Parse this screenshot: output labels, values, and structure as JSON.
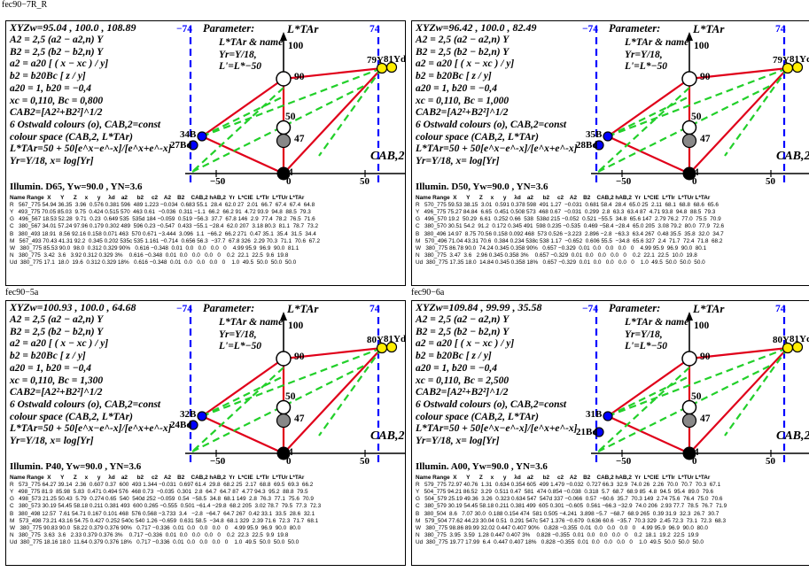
{
  "page": {
    "top_label": "fec90−7R_R",
    "colors": {
      "blue": "#0000ff",
      "red": "#e0001a",
      "green": "#22d02a",
      "yellow": "#ffee00",
      "gray": "#888888"
    }
  },
  "panels": [
    {
      "id": "p1",
      "xyz": "XYZw=95.04 , 100.0 , 108.89",
      "lines": [
        "A2 = 2,5 (a2 − a2,n) Y",
        "B2 = 2,5 (b2 − b2,n) Y",
        "a2 = a20 [ ( x − xc ) / y]",
        "b2 = b20Bc [ z / y]",
        "a20 = 1,  b20 = −0,4",
        "xc = 0,110,  Bc = 0,800",
        "CAB2=[A2²+B2²]^1/2",
        "6 Ostwald colours (o), CAB,2=const",
        "colour space (CAB,2, L*TAr)",
        "L*TAr=50 + 50[e^x−e^-x]/[e^x+e^-x]",
        "Yr=Y/18,  x= log[Yr]"
      ],
      "param_title": "Parameter:",
      "param_lines": [
        "L*TAr & name",
        "Yr=Y/18,",
        "L'=L*−50"
      ],
      "axis_l": "L*TAr",
      "axis_c": "CAB,2",
      "left_tick": "−74",
      "right_tick": "74",
      "yellow_label": "79Y",
      "yellow_d": "81Yd",
      "blue_label": "34B",
      "blue_d": "27Bd",
      "num_100": "100",
      "num_90": "90",
      "num_50": "50",
      "num_47": "47",
      "num_4": "4",
      "tick_m50": "−50",
      "tick_0": "0",
      "tick_50": "50",
      "illum": "Illumin. D65, Yw=90.0 , YN=3.6",
      "table": [
        "Name Range  X      Y      Z     x      y     λd    a2      b2     c2    A2    B2    CAB,2 hAB,2  Yr  L*CIE  L*TIr  L*TUr L*TAr",
        "R   567_775 54.94 36.35  3.96  0.576 0.381 596  489 1.223 −0.034  0.683 55.1  28.4  62.0 27  2.01  66.7  67.4  67.4  64.8",
        "Y   493_775 70.05 85.03  9.75  0.424 0.515 570  463 0.61  −0.036  0.311 −1.1  66.2  66.2 91  4.72 93.9  94.8  88.5  79.3",
        "G   496_567 18.53 52.28  9.71  0.23  0.649 535  535d 184 −0.059  0.519 −56.3  37.7  67.8 146  2.9  77.4  78.2  76.5  71.6",
        "C   380_567 34.01 57.24 97.96 0.179 0.302 489  596 0.23 −0.547  0.433 −55.1 −28.4  62.0 207  3.18 80.3  81.1  78.7  73.2",
        "B   380_493 18.91  8.56 92.16 0.158 0.071 463  570 0.671 −3.444  3.096  1.1  −66.2  66.2 271  0.47 35.1  35.4  31.5  34.4",
        "M   567_493 70.43 41.31 92.2  0.345 0.202 535c 535 1.161 −0.714  0.656 56.3  −37.7  67.8 326  2.29 70.3  71.1  70.6  67.2",
        "W   380_775 85.53 90.0  98.0  0.312 0.329 90%   0.616 −0.348  0.01  0.0   0.0   0.0   0    4.99 95.9  96.9  90.0  81.1",
        "N   380_775  3.42  3.6   3.92 0.312 0.329 3%    0.616 −0.348  0.01  0.0   0.0   0.0   0    0.2  22.1  22.5  9.6  19.8",
        "Ud  380_775 17.1  18.0  19.6  0.312 0.329 18%   0.616 −0.348  0.01  0.0   0.0   0.0   0    1.0  49.5  50.0  50.0  50.0"
      ],
      "footer": "fec90−5a"
    },
    {
      "id": "p2",
      "xyz": "XYZw=96.42 , 100.0 , 82.49",
      "lines": [
        "A2 = 2,5 (a2 − a2,n) Y",
        "B2 = 2,5 (b2 − b2,n) Y",
        "a2 = a20 [ ( x − xc ) / y]",
        "b2 = b20Bc [ z / y]",
        "a20 = 1,  b20 = −0,4",
        "xc = 0,110,  Bc = 1,000",
        "CAB2=[A2²+B2²]^1/2",
        "6 Ostwald colours (o), CAB,2=const",
        "colour space (CAB,2, L*TAr)",
        "L*TAr=50 + 50[e^x−e^-x]/[e^x+e^-x]",
        "Yr=Y/18,  x= log[Yr]"
      ],
      "param_title": "Parameter:",
      "param_lines": [
        "L*TAr & name",
        "Yr=Y/18,",
        "L'=L*−50"
      ],
      "axis_l": "L*TAr",
      "axis_c": "CAB,2",
      "left_tick": "−74",
      "right_tick": "74",
      "yellow_label": "79Y",
      "yellow_d": "81Yd",
      "blue_label": "35B",
      "blue_d": "28Bd",
      "num_100": "100",
      "num_90": "90",
      "num_50": "50",
      "num_47": "47",
      "num_4": "4",
      "tick_m50": "−50",
      "tick_0": "0",
      "tick_50": "50",
      "illum": "Illumin. D50, Yw=90.0 , YN=3.6",
      "table": [
        "Name Range  X      Y      Z     x      y     λd    a2      b2     c2    A2    B2    CAB,2 hAB,2  Yr  L*CIE  L*TIr  L*TUr L*TAr",
        "R   570_775 59.53 38.15  3.01  0.591 0.378 598  491 1.27  −0.031  0.681 58.4  28.4  65.0 25  2.11  68.1  68.8  68.6  65.6",
        "Y   496_775 75.27 84.84  6.65  0.451 0.508 573  468 0.67  −0.031  0.299  2.8  63.3  63.4 87  4.71 93.8  94.8  88.5  79.3",
        "G   496_570 19.2  50.29  6.61  0.252 0.66  538  538d 215 −0.052  0.521 −55.5  34.8  65.6 147  2.79 76.2  77.0  75.5  70.9",
        "C   380_570 30.51 54.2  91.2  0.172 0.345 491  598 0.235 −0.535  0.469 −58.4 −28.4  65.0 205  3.08 79.2  80.0  77.9  72.6",
        "B   380_496 14.97  8.75 70.56 0.158 0.092 468  573 0.526 −3.223  2.896 −2.8  −63.3  63.4 267  0.48 35.5  35.8  32.0  34.7",
        "M   570_496 71.04 43.31 70.6  0.384 0.234 538c 538 1.17  −0.652  0.606 55.5  −34.8  65.6 327  2.4  71.7  72.4  71.8  68.2",
        "W   380_775 86.78 90.0  74.24 0.345 0.358 90%   0.657 −0.329  0.01  0.0   0.0   0.0   0    4.99 95.9  96.9  90.0  80.1",
        "N   380_775  3.47  3.6   2.96 0.345 0.358 3%    0.657 −0.329  0.01  0.0   0.0   0.0   0    0.2  22.1  22.5  10.0  19.8",
        "Ud  380_775 17.35 18.0  14.84 0.345 0.358 18%   0.657 −0.329  0.01  0.0   0.0   0.0   0    1.0  49.5  50.0  50.0  50.0"
      ],
      "footer": "fec90−6a"
    },
    {
      "id": "p3",
      "xyz": "XYZw=100.93 , 100.0 , 64.68",
      "lines": [
        "A2 = 2,5 (a2 − a2,n) Y",
        "B2 = 2,5 (b2 − b2,n) Y",
        "a2 = a20 [ ( x − xc ) / y]",
        "b2 = b20Bc [ z / y]",
        "a20 = 1,  b20 = −0,4",
        "xc = 0,110,  Bc = 1,300",
        "CAB2=[A2²+B2²]^1/2",
        "6 Ostwald colours (o), CAB,2=const",
        "colour space (CAB,2, L*TAr)",
        "L*TAr=50 + 50[e^x−e^-x]/[e^x+e^-x]",
        "Yr=Y/18,  x= log[Yr]"
      ],
      "param_title": "Parameter:",
      "param_lines": [
        "L*TAr & name",
        "Yr=Y/18,",
        "L'=L*−50"
      ],
      "axis_l": "L*TAr",
      "axis_c": "CAB,2",
      "left_tick": "−74",
      "right_tick": "74",
      "yellow_label": "80Y",
      "yellow_d": "81Yd",
      "blue_label": "32B",
      "blue_d": "24Bd",
      "num_100": "100",
      "num_90": "90",
      "num_50": "50",
      "num_47": "47",
      "num_4": "4",
      "tick_m50": "−50",
      "tick_0": "0",
      "tick_50": "50",
      "illum": "Illumin. P40, Yw=90.0 , YN=3.6",
      "table": [
        "Name Range  X      Y      Z     x      y     λd    a2      b2     c2    A2    B2    CAB,2 hAB,2  Yr  L*CIE  L*TIr  L*TUr L*TAr",
        "R   573_775 64.27 39.14  2.36  0.607 0.37  600  493 1.344 −0.031  0.697 61.4  29.8  68.2 25  2.17  68.8  69.5  69.3  66.2",
        "Y   498_775 81.9  85.98  5.83  0.471 0.494 576  468 0.73  −0.035  0.301  2.8  64.7  64.7 87  4.77 94.3  95.2  88.8  79.5",
        "G   498_573 21.25 50.43  5.79  0.274 0.65  540  540d 252 −0.059  0.54  −58.5  34.8  68.1 149  2.8  76.3  77.1  75.6  70.9",
        "C   380_573 30.19 54.45 58.18 0.211 0.381 493  600 0.265 −0.555  0.501 −61.4 −29.8  68.2 205  3.02 78.7  79.5  77.3  72.3",
        "B   380_498 12.57  7.61 54.71 0.167 0.101 468  576 0.568 −3.733  3.4   −2.8  −64.7  64.7 267  0.42 33.1  33.5  28.6  32.1",
        "M   573_498 73.21 43.16 54.75 0.427 0.252 540c 540 1.26 −0.659  0.631 58.5  −34.8  68.1 329  2.39 71.6  72.3  71.7  68.1",
        "W   380_775 90.83 90.0  58.22 0.379 0.376 90%   0.717 −0.336  0.01  0.0   0.0   0.0   0    4.99 95.9  96.9  90.0  80.0",
        "N   380_775  3.63  3.6   2.33 0.379 0.376 3%    0.717 −0.336  0.01  0.0   0.0   0.0   0    0.2  22.3  22.5  9.9  19.8",
        "Ud  380_775 18.16 18.0  11.64 0.379 0.376 18%   0.717 −0.336  0.01  0.0   0.0   0.0   0    1.0  49.5  50.0  50.0  50.0"
      ],
      "footer": ""
    },
    {
      "id": "p4",
      "xyz": "XYZw=109.84 , 99.99 , 35.58",
      "lines": [
        "A2 = 2,5 (a2 − a2,n) Y",
        "B2 = 2,5 (b2 − b2,n) Y",
        "a2 = a20 [ ( x − xc ) / y]",
        "b2 = b20Bc [ z / y]",
        "a20 = 1,  b20 = −0,4",
        "xc = 0,110,  Bc = 2,500",
        "CAB2=[A2²+B2²]^1/2",
        "6 Ostwald colours (o), CAB,2=const",
        "colour space (CAB,2, L*TAr)",
        "L*TAr=50 + 50[e^x−e^-x]/[e^x+e^-x]",
        "Yr=Y/18,  x= log[Yr]"
      ],
      "param_title": "Parameter:",
      "param_lines": [
        "L*TAr & name",
        "Yr=Y/18,",
        "L'=L*−50"
      ],
      "axis_l": "L*TAr",
      "axis_c": "CAB,2",
      "left_tick": "−74",
      "right_tick": "74",
      "yellow_label": "80Y",
      "yellow_d": "81Yd",
      "blue_label": "31B",
      "blue_d": "21Bd",
      "num_100": "100",
      "num_90": "90",
      "num_50": "50",
      "num_47": "47",
      "num_4": "4",
      "tick_m50": "−50",
      "tick_0": "0",
      "tick_50": "50",
      "illum": "Illumin. A00, Yw=90.0 , YN=3.6",
      "table": [
        "Name Range  X      Y      Z     x      y     λd    a2      b2     c2    A2    B2    CAB,2 hAB,2  Yr  L*CIE  L*TIr  L*TUr L*TAr",
        "R   579_775 72.97 40.76  1.31  0.634 0.354 605  499 1.479 −0.032  0.727 66.3  32.9  74.0 26  2.26  70.0  70.7  70.3  67.1",
        "Y   504_775 94.21 86.52  3.29  0.511 0.47  581  474 0.854 −0.038  0.318  5.7  68.7  68.9 85  4.8  94.5  95.4  89.0  79.6",
        "G   504_579 25.19 49.36  3.26  0.323 0.634 547  547d 337 −0.066  0.57  −60.6  35.7  70.3 149  2.74 75.6  76.4  75.0  70.6",
        "C   380_579 30.19 54.45 58.18 0.211 0.381 499  605 0.301 −0.605  0.561 −66.3 −32.9  74.0 206  2.93 77.7  78.5  76.7  71.9",
        "B   380_504  8.6   7.07 30.0  0.188 0.154 474  581 0.505 −4.241  3.898 −5.7  −68.7  68.9 265  0.39 31.9  32.3  26.7  30.7",
        "M   579_504 77.62 44.23 30.04 0.51  0.291 547c 547 1.376 −0.679  0.636 60.6  −35.7  70.3 329  2.45 72.3  73.1  72.3  68.3",
        "W   380_775 98.86 89.99 32.02 0.447 0.407 90%   0.828 −0.355  0.01  0.0   0.0   0.0   0    4.99 95.9  96.9  90.0  80.0",
        "N   380_775  3.95  3.59  1.28 0.447 0.407 3%    0.828 −0.355  0.01  0.0   0.0   0.0   0    0.2  18.1  19.2  22.5  19.9",
        "Ud  380_775 19.77 17.99  6.4  0.447 0.407 18%   0.828 −0.355  0.01  0.0   0.0   0.0   0    1.0  49.5  50.0  50.0  50.0"
      ],
      "footer": ""
    }
  ]
}
